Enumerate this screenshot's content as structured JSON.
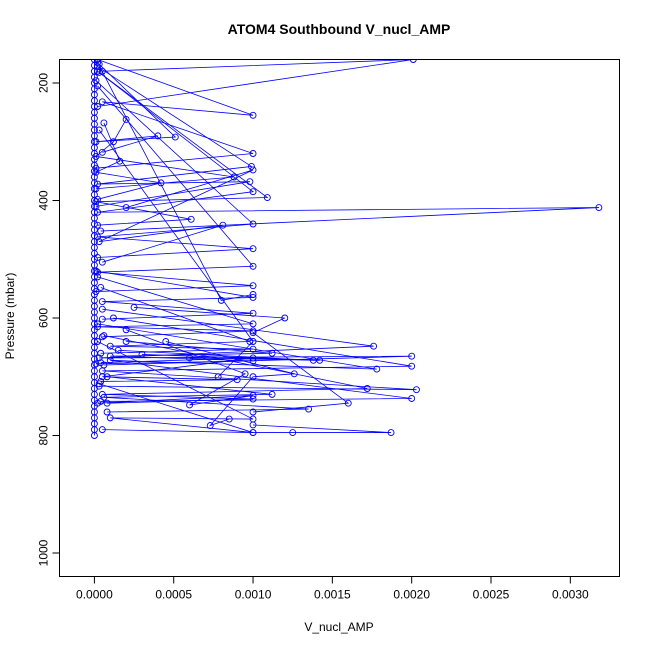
{
  "chart_data": {
    "type": "line",
    "title": "ATOM4 Southbound V_nucl_AMP",
    "xlabel": "V_nucl_AMP",
    "ylabel": "Pressure (mbar)",
    "xlim": [
      -0.00022,
      0.00331
    ],
    "ylim": [
      1040,
      160
    ],
    "y_reversed": true,
    "x_ticks": [
      0.0,
      0.0005,
      0.001,
      0.0015,
      0.002,
      0.0025,
      0.003
    ],
    "x_tick_labels": [
      "0.0000",
      "0.0005",
      "0.0010",
      "0.0015",
      "0.0020",
      "0.0025",
      "0.0030"
    ],
    "y_ticks": [
      200,
      400,
      600,
      800,
      1000
    ],
    "y_tick_labels": [
      "200",
      "400",
      "600",
      "800",
      "1000"
    ],
    "grid": false,
    "color": "#0000ff",
    "series": [
      {
        "points": [
          [
            0.0,
            160
          ],
          [
            0.0,
            170
          ],
          [
            0.0,
            180
          ],
          [
            0.0,
            190
          ],
          [
            0.0,
            200
          ],
          [
            0.0,
            210
          ],
          [
            0.0,
            220
          ],
          [
            0.0,
            230
          ],
          [
            0.0,
            240
          ],
          [
            0.0,
            250
          ],
          [
            0.0,
            260
          ],
          [
            0.0,
            270
          ],
          [
            0.0,
            280
          ],
          [
            0.0,
            290
          ],
          [
            0.0,
            300
          ],
          [
            0.0,
            310
          ],
          [
            0.0,
            320
          ],
          [
            0.0,
            330
          ],
          [
            0.0,
            340
          ],
          [
            0.0,
            350
          ],
          [
            0.0,
            360
          ],
          [
            0.0,
            370
          ],
          [
            0.0,
            380
          ],
          [
            0.0,
            390
          ],
          [
            0.0,
            400
          ],
          [
            0.0,
            410
          ],
          [
            0.0,
            420
          ],
          [
            0.0,
            430
          ],
          [
            0.0,
            440
          ],
          [
            0.0,
            450
          ],
          [
            0.0,
            460
          ],
          [
            0.0,
            470
          ],
          [
            0.0,
            480
          ],
          [
            0.0,
            490
          ],
          [
            0.0,
            500
          ],
          [
            0.0,
            510
          ],
          [
            0.0,
            520
          ],
          [
            0.0,
            530
          ],
          [
            0.0,
            540
          ],
          [
            0.0,
            550
          ],
          [
            0.0,
            560
          ],
          [
            0.0,
            570
          ],
          [
            0.0,
            580
          ],
          [
            0.0,
            590
          ],
          [
            0.0,
            600
          ],
          [
            0.0,
            610
          ],
          [
            0.0,
            620
          ],
          [
            0.0,
            630
          ],
          [
            0.0,
            640
          ],
          [
            0.0,
            650
          ],
          [
            0.0,
            660
          ],
          [
            0.0,
            670
          ],
          [
            0.0,
            680
          ],
          [
            0.0,
            690
          ],
          [
            0.0,
            700
          ],
          [
            0.0,
            710
          ],
          [
            0.0,
            720
          ],
          [
            0.0,
            730
          ],
          [
            0.0,
            740
          ],
          [
            0.0,
            750
          ],
          [
            0.0,
            760
          ],
          [
            0.0,
            770
          ],
          [
            0.0,
            780
          ],
          [
            0.0,
            790
          ],
          [
            0.0,
            800
          ]
        ]
      },
      {
        "points": [
          [
            2e-05,
            160
          ],
          [
            0.001,
            255
          ],
          [
            5e-05,
            232
          ],
          [
            0.001,
            320
          ],
          [
            1e-05,
            345
          ]
        ]
      },
      {
        "points": [
          [
            2e-05,
            172
          ],
          [
            0.00099,
            342
          ],
          [
            2e-05,
            372
          ],
          [
            0.00098,
            368
          ],
          [
            1e-05,
            410
          ]
        ]
      },
      {
        "points": [
          [
            3e-05,
            182
          ],
          [
            0.001,
            385
          ],
          [
            2e-05,
            420
          ],
          [
            0.00318,
            412
          ],
          [
            4e-05,
            452
          ]
        ]
      },
      {
        "points": [
          [
            1e-05,
            196
          ],
          [
            0.001,
            440
          ],
          [
            2e-05,
            462
          ],
          [
            0.001,
            482
          ],
          [
            2e-05,
            497
          ]
        ]
      },
      {
        "points": [
          [
            2e-05,
            205
          ],
          [
            0.001,
            512
          ],
          [
            2e-05,
            522
          ],
          [
            0.001,
            545
          ],
          [
            1e-05,
            555
          ]
        ]
      },
      {
        "points": [
          [
            3e-05,
            168
          ],
          [
            0.00051,
            292
          ],
          [
            1e-05,
            300
          ],
          [
            0.0004,
            290
          ],
          [
            5e-05,
            318
          ]
        ]
      },
      {
        "points": [
          [
            6e-05,
            268
          ],
          [
            0.00016,
            333
          ],
          [
            1e-05,
            352
          ],
          [
            0.00042,
            370
          ],
          [
            2e-05,
            398
          ]
        ]
      },
      {
        "points": [
          [
            2e-05,
            180
          ],
          [
            0.00109,
            395
          ],
          [
            1e-05,
            402
          ],
          [
            0.00061,
            432
          ],
          [
            2e-05,
            442
          ]
        ]
      },
      {
        "points": [
          [
            0.0002,
            262
          ],
          [
            0.00012,
            300
          ],
          [
            1e-05,
            325
          ],
          [
            0.00088,
            360
          ],
          [
            1e-05,
            380
          ]
        ]
      },
      {
        "points": [
          [
            0.0002,
            412
          ],
          [
            0.001,
            348
          ],
          [
            3e-05,
            470
          ],
          [
            0.00081,
            442
          ],
          [
            5e-05,
            505
          ]
        ]
      },
      {
        "points": [
          [
            1e-05,
            520
          ],
          [
            0.001,
            565
          ],
          [
            5e-05,
            572
          ],
          [
            0.001,
            592
          ],
          [
            5e-05,
            602
          ]
        ]
      },
      {
        "points": [
          [
            2e-05,
            530
          ],
          [
            0.001,
            610
          ],
          [
            2e-05,
            615
          ],
          [
            0.001,
            622
          ],
          [
            5e-05,
            632
          ]
        ]
      },
      {
        "points": [
          [
            4e-05,
            548
          ],
          [
            0.00098,
            640
          ],
          [
            0.0001,
            648
          ],
          [
            0.001,
            653
          ],
          [
            4e-05,
            660
          ]
        ]
      },
      {
        "points": [
          [
            5e-05,
            585
          ],
          [
            0.00176,
            648
          ],
          [
            3e-05,
            668
          ],
          [
            0.002,
            665
          ],
          [
            6e-05,
            680
          ]
        ]
      },
      {
        "points": [
          [
            0.00012,
            600
          ],
          [
            0.002,
            682
          ],
          [
            5e-05,
            690
          ],
          [
            0.00203,
            722
          ],
          [
            3e-05,
            716
          ]
        ]
      },
      {
        "points": [
          [
            2e-05,
            610
          ],
          [
            0.00178,
            687
          ],
          [
            0.0001,
            672
          ],
          [
            0.002,
            737
          ],
          [
            4e-05,
            742
          ]
        ]
      },
      {
        "points": [
          [
            6e-05,
            630
          ],
          [
            0.00172,
            720
          ],
          [
            5e-05,
            730
          ],
          [
            0.001,
            738
          ],
          [
            8e-05,
            745
          ]
        ]
      },
      {
        "points": [
          [
            2e-05,
            640
          ],
          [
            0.001,
            772
          ],
          [
            0.0001,
            770
          ],
          [
            0.001,
            795
          ],
          [
            5e-05,
            790
          ]
        ]
      },
      {
        "points": [
          [
            0.00025,
            582
          ],
          [
            0.0012,
            600
          ],
          [
            0.001,
            625
          ],
          [
            0.0016,
            745
          ],
          [
            0.001,
            760
          ]
        ]
      },
      {
        "points": [
          [
            0.00045,
            640
          ],
          [
            0.00126,
            695
          ],
          [
            0.001,
            700
          ],
          [
            0.00073,
            783
          ],
          [
            0.00085,
            772
          ]
        ]
      },
      {
        "points": [
          [
            0.00015,
            655
          ],
          [
            0.00138,
            672
          ],
          [
            0.0003,
            662
          ],
          [
            0.00142,
            672
          ],
          [
            0.0006,
            668
          ]
        ]
      },
      {
        "points": [
          [
            4e-05,
            676
          ],
          [
            0.001,
            668
          ],
          [
            5e-05,
            700
          ],
          [
            0.0009,
            705
          ],
          [
            4e-05,
            708
          ]
        ]
      },
      {
        "points": [
          [
            0.0002,
            640
          ],
          [
            0.00112,
            660
          ],
          [
            0.0001,
            665
          ],
          [
            0.001,
            673
          ],
          [
            1e-05,
            678
          ]
        ]
      },
      {
        "points": [
          [
            8e-05,
            700
          ],
          [
            0.00112,
            730
          ],
          [
            6e-05,
            735
          ],
          [
            0.00135,
            755
          ],
          [
            8e-05,
            760
          ]
        ]
      },
      {
        "points": [
          [
            0.0002,
            620
          ],
          [
            0.00095,
            695
          ],
          [
            0.0006,
            748
          ],
          [
            0.001,
            732
          ],
          [
            2e-05,
            745
          ]
        ]
      },
      {
        "points": [
          [
            3e-05,
            712
          ],
          [
            0.001,
            795
          ],
          [
            0.00125,
            795
          ],
          [
            0.00187,
            795
          ],
          [
            0.001,
            782
          ]
        ]
      },
      {
        "points": [
          [
            5e-05,
            180
          ],
          [
            0.00201,
            160
          ],
          [
            2e-05,
            240
          ]
        ]
      },
      {
        "points": [
          [
            2e-05,
            165
          ],
          [
            0.0008,
            570
          ],
          [
            0.001,
            560
          ]
        ]
      },
      {
        "points": [
          [
            3e-05,
            280
          ],
          [
            0.001,
            640
          ],
          [
            0.00078,
            700
          ]
        ]
      }
    ]
  }
}
